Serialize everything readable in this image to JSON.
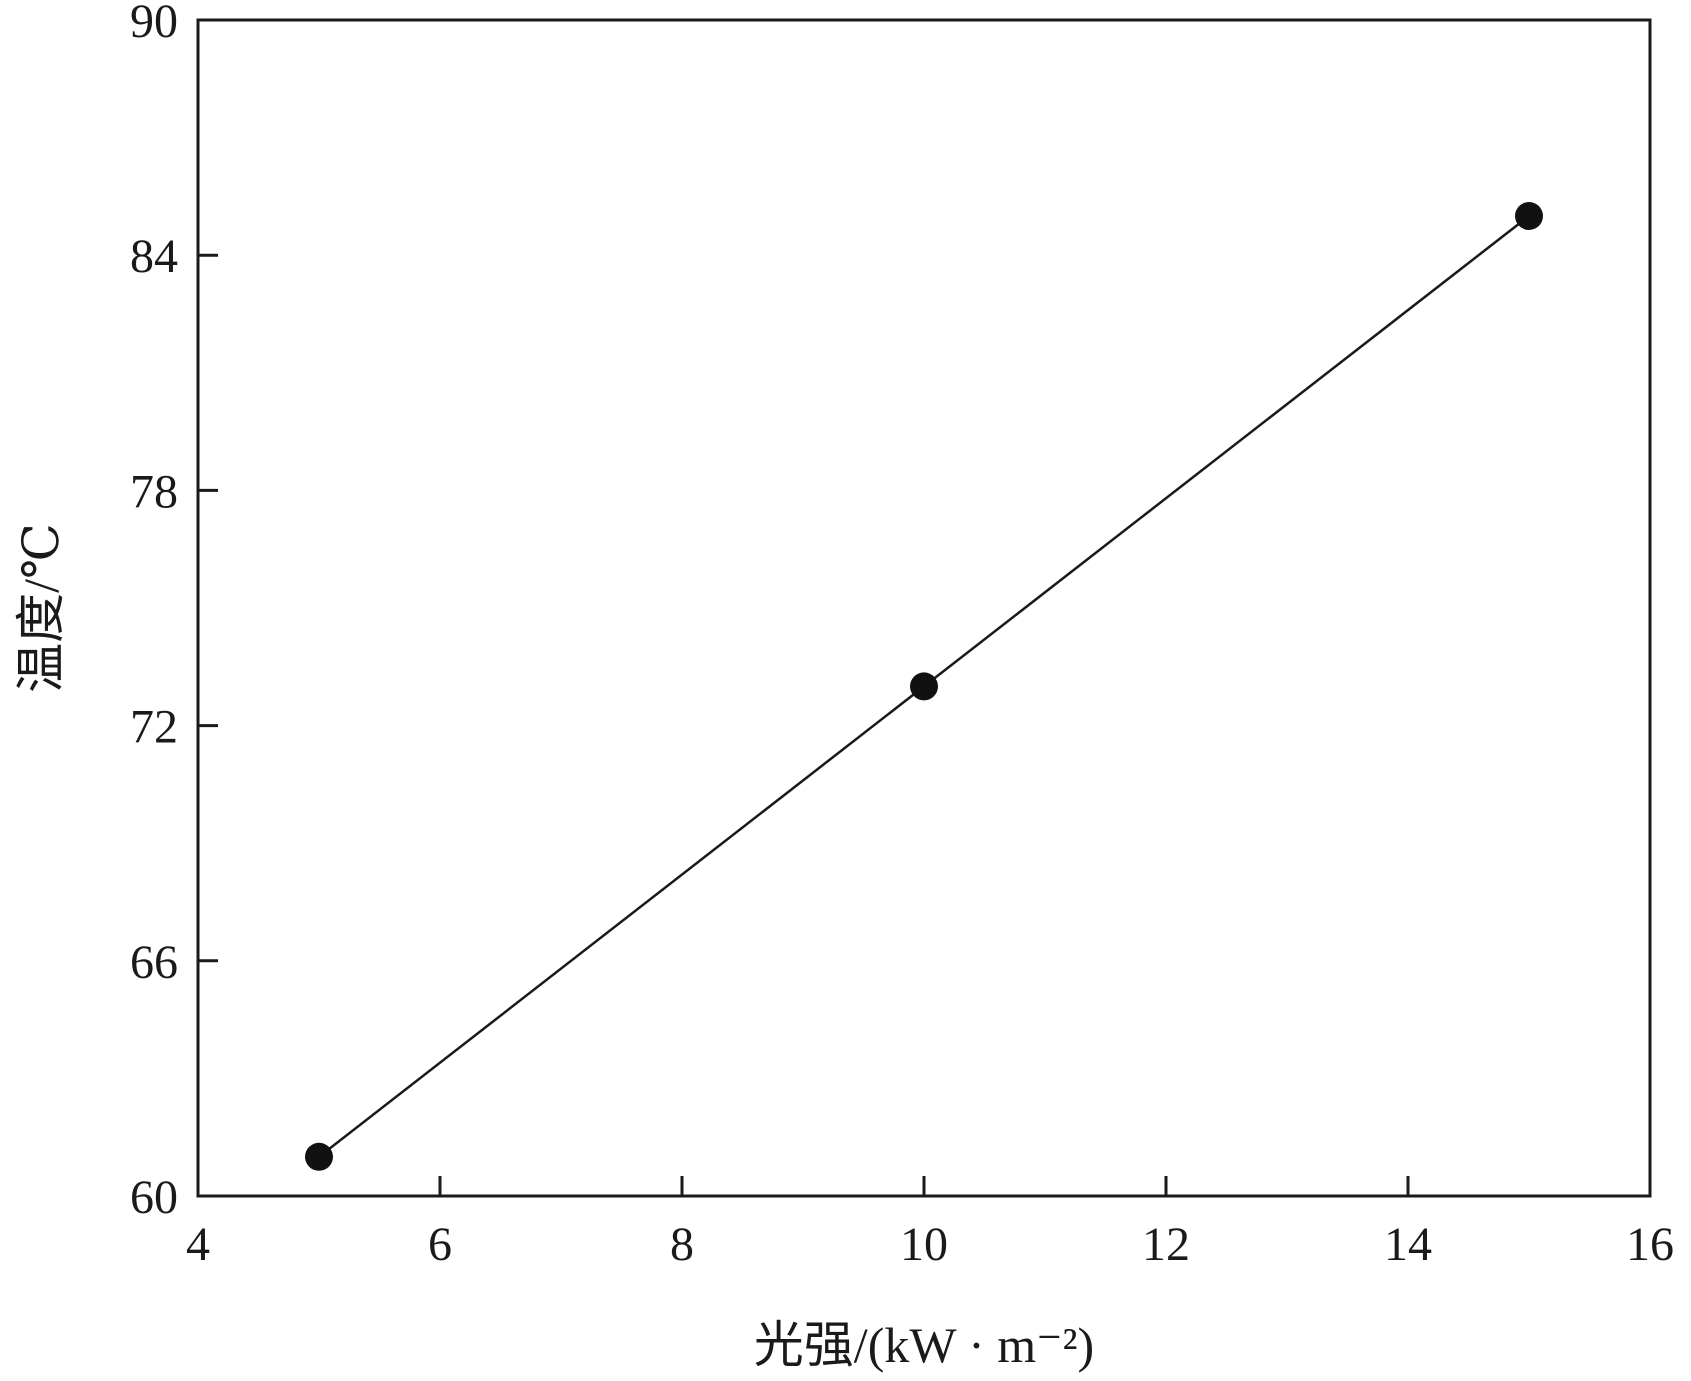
{
  "chart_data": {
    "type": "line",
    "title": "",
    "xlabel": "光强/(kW · m⁻²)",
    "ylabel": "温度/℃",
    "xlim": [
      4,
      16
    ],
    "ylim": [
      60,
      90
    ],
    "xticks": [
      "4",
      "6",
      "8",
      "10",
      "12",
      "14",
      "16"
    ],
    "yticks": [
      "60",
      "66",
      "72",
      "78",
      "84",
      "90"
    ],
    "grid": false,
    "legend": "none",
    "series": [
      {
        "x": [
          5,
          10,
          15
        ],
        "y": [
          61,
          73,
          85
        ]
      }
    ],
    "colors": {
      "line": "#1a1a1a",
      "marker": "#111111",
      "frame": "#1a1a1a"
    }
  }
}
